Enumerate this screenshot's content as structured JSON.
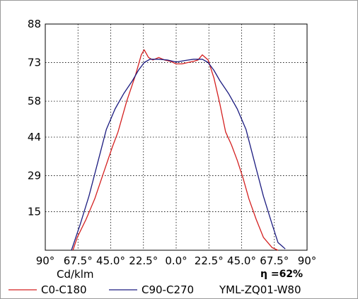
{
  "chart_data": {
    "type": "line",
    "x_tick_labels": [
      "90°",
      "67.5°",
      "45.0°",
      "22.5°",
      "0.0°",
      "22.5°",
      "45.0°",
      "67.5°",
      "90°"
    ],
    "x_signed": [
      -90,
      -67.5,
      -45,
      -22.5,
      0,
      22.5,
      45,
      67.5,
      90
    ],
    "y_ticks": [
      15,
      29,
      44,
      58,
      73,
      88
    ],
    "ylim": [
      0,
      88
    ],
    "xlim": [
      -90,
      90
    ],
    "unit_label": "Cd/klm",
    "efficiency_text": "η =62%",
    "grid": true,
    "legend_position": "bottom",
    "series": [
      {
        "name": "C0-C180",
        "color": "#d42020",
        "x": [
          -71,
          -68,
          -62,
          -56,
          -50,
          -44,
          -40,
          -34,
          -28,
          -24,
          -22,
          -19,
          -16,
          -12,
          -8,
          -4,
          0,
          4,
          8,
          12,
          15,
          18,
          22,
          26,
          30,
          34,
          38,
          42,
          46,
          50,
          55,
          60,
          66,
          70
        ],
        "y": [
          0,
          5,
          12,
          20,
          30,
          40,
          46,
          58,
          68,
          76,
          78,
          75,
          74,
          75,
          74,
          73.5,
          72.5,
          72.5,
          73,
          73.5,
          74,
          76,
          74,
          67,
          57,
          46,
          41,
          35,
          28,
          20,
          12,
          5,
          1,
          0
        ]
      },
      {
        "name": "C90-C270",
        "color": "#1c1c80",
        "x": [
          -72,
          -66,
          -60,
          -54,
          -48,
          -42,
          -36,
          -30,
          -26,
          -22,
          -18,
          -12,
          -6,
          0,
          6,
          12,
          18,
          22,
          26,
          30,
          36,
          42,
          48,
          54,
          60,
          66,
          70,
          73,
          75
        ],
        "y": [
          0,
          10,
          21,
          34,
          47,
          55,
          61,
          66,
          70,
          73,
          74.3,
          74.3,
          74,
          73.2,
          73.8,
          74.3,
          74.3,
          73,
          70,
          66,
          61,
          55,
          47,
          34,
          21,
          10,
          3,
          1.5,
          0.5
        ]
      }
    ],
    "legend_extra_text": "YML-ZQ01-W80"
  }
}
